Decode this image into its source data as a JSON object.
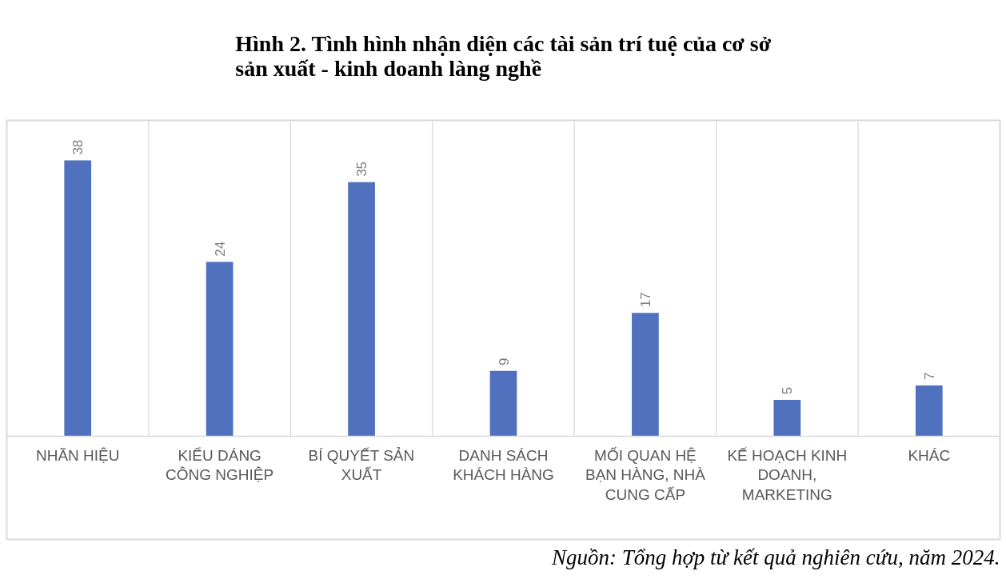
{
  "chart_data": {
    "type": "bar",
    "title": "Hình 2. Tình hình nhận diện các tài sản trí tuệ của cơ sở sản xuất - kinh doanh làng nghề",
    "categories": [
      "NHÃN HIỆU",
      "KIỂU DÁNG CÔNG NGHIỆP",
      "BÍ QUYẾT SẢN XUẤT",
      "DANH SÁCH KHÁCH HÀNG",
      "MỐI QUAN HỆ BẠN HÀNG, NHÀ CUNG CẤP",
      "KẾ HOẠCH KINH DOANH, MARKETING",
      "KHÁC"
    ],
    "values": [
      38,
      24,
      35,
      9,
      17,
      5,
      7
    ],
    "color": "#4f71be",
    "data_labels": true,
    "grid": "x",
    "annotations": [
      "Nguồn: Tổng hợp từ kết quả nghiên cứu, năm 2024."
    ]
  }
}
